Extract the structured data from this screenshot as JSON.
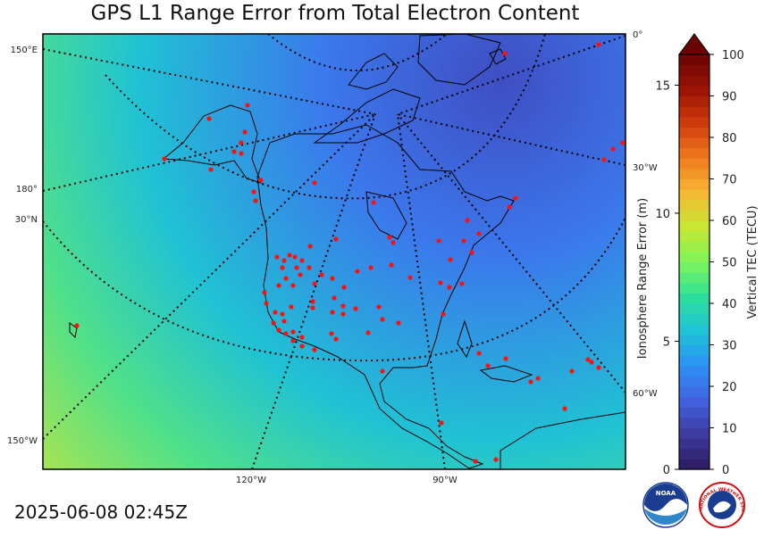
{
  "title": "GPS L1 Range Error from Total Electron Content",
  "timestamp": "2025-06-08 02:45Z",
  "graticule_labels": {
    "left": [
      "150°E",
      "180°",
      "30°N",
      "150°W"
    ],
    "right": [
      "0°",
      "30°W",
      "60°W"
    ],
    "bottom": [
      "120°W",
      "90°W"
    ]
  },
  "range_axis": {
    "label": "Ionosphere Range Error (m)",
    "ticks": [
      {
        "value": 0,
        "text": "0"
      },
      {
        "value": 5,
        "text": "5"
      },
      {
        "value": 10,
        "text": "10"
      },
      {
        "value": 15,
        "text": "15"
      }
    ],
    "max": 16.2
  },
  "tec_colorbar": {
    "label": "Vertical TEC (TECU)",
    "ticks": [
      {
        "value": 0,
        "text": "0"
      },
      {
        "value": 10,
        "text": "10"
      },
      {
        "value": 20,
        "text": "20"
      },
      {
        "value": 30,
        "text": "30"
      },
      {
        "value": 40,
        "text": "40"
      },
      {
        "value": 50,
        "text": "50"
      },
      {
        "value": 60,
        "text": "60"
      },
      {
        "value": 70,
        "text": "70"
      },
      {
        "value": 80,
        "text": "80"
      },
      {
        "value": 90,
        "text": "90"
      },
      {
        "value": 100,
        "text": "100"
      }
    ],
    "colors": [
      "#2e1a5e",
      "#3c3a9e",
      "#4262e0",
      "#2d90f5",
      "#1ec3d8",
      "#2ddf9a",
      "#7cf55a",
      "#c6e832",
      "#f6b834",
      "#f07b1e",
      "#d03c0c",
      "#9a1304",
      "#6a0404"
    ]
  },
  "field_colors": {
    "high_lat": "#3f4ec2",
    "mid_lat": "#3b78ec",
    "low_lat": "#20c2d4",
    "tropics": "#4fe08a",
    "southwest": "#b8e546"
  },
  "station_color": "#ff1010",
  "logos": [
    "NOAA",
    "NATIONAL WEATHER SERVICE"
  ]
}
